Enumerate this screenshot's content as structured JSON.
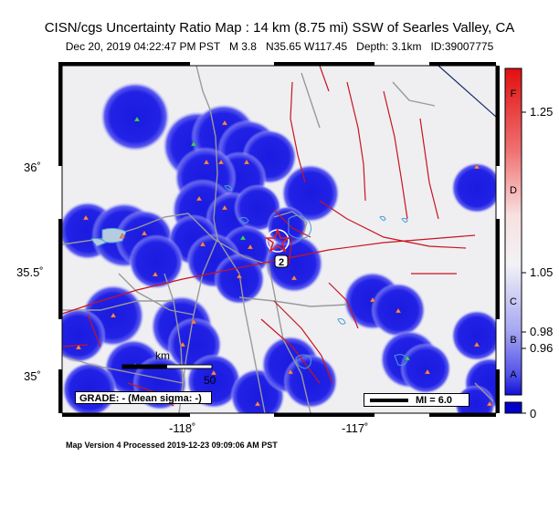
{
  "title": "CISN/cgs Uncertainty Ratio Map : 14 km (8.75 mi) SSW of Searles Valley, CA",
  "subtitle": "Dec 20, 2019 04:22:47 PM PST   M 3.8   N35.65 W117.45   Depth: 3.1km   ID:39007775",
  "footer": "Map Version 4 Processed 2019-12-23 09:09:06 AM PST",
  "axes": {
    "lat_labels": [
      "36˚",
      "35.5˚",
      "35˚"
    ],
    "lon_labels": [
      "-118˚",
      "-117˚"
    ]
  },
  "colorbar": {
    "letters": [
      "F",
      "D",
      "C",
      "B",
      "A"
    ],
    "values": [
      "1.25",
      "1.05",
      "0.98",
      "0.96",
      "0"
    ]
  },
  "legend": {
    "grade": "GRADE: - (Mean sigma: -)",
    "mi": "MI = 6.0",
    "scale_unit": "km",
    "scale_value": "50"
  },
  "marker": {
    "station_label": "2"
  },
  "colors": {
    "station_blue": "#0000e6",
    "fault_red": "#c8141e",
    "road_gray": "#9a9a9a",
    "epicenter_red": "#e02020"
  },
  "icons": [
    "epicenter-star-icon",
    "station-triangle-icon"
  ]
}
